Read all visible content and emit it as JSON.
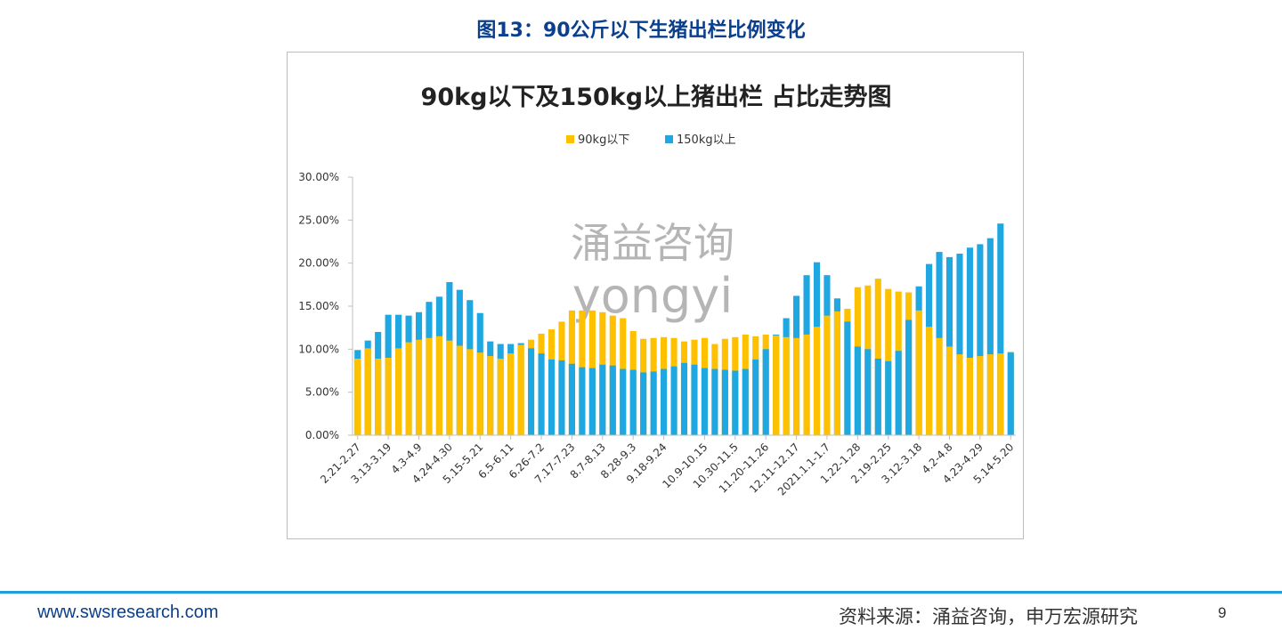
{
  "page": {
    "figure_title": "图13：90公斤以下生猪出栏比例变化",
    "footer_url": "www.swsresearch.com",
    "footer_source": "资料来源：涌益咨询，申万宏源研究",
    "page_number": "9"
  },
  "chart_data": {
    "type": "bar",
    "title": "90kg以下及150kg以上猪出栏 占比走势图",
    "watermark": [
      "涌益咨询",
      "yongyi"
    ],
    "legend_position": "top-center",
    "y_axis": {
      "min": 0,
      "max": 30,
      "unit": "%",
      "ticks": [
        "0.00%",
        "5.00%",
        "10.00%",
        "15.00%",
        "20.00%",
        "25.00%",
        "30.00%"
      ]
    },
    "x_tick_labels": [
      "2.21-2.27",
      "3.13-3.19",
      "4.3-4.9",
      "4.24-4.30",
      "5.15-5.21",
      "6.5-6.11",
      "6.26-7.2",
      "7.17-7.23",
      "8.7-8.13",
      "8.28-9.3",
      "9.18-9.24",
      "10.9-10.15",
      "10.30-11.5",
      "11.20-11.26",
      "12.11-12.17",
      "2021.1.1-1.7",
      "1.22-1.28",
      "2.19-2.25",
      "3.12-3.18",
      "4.2-4.8",
      "4.23-4.29",
      "5.14-5.20"
    ],
    "series": [
      {
        "name": "90kg以下",
        "color": "#ffc000",
        "values": [
          8.9,
          10.1,
          8.9,
          9.0,
          10.1,
          10.8,
          11.1,
          11.3,
          11.5,
          11.0,
          10.4,
          10.0,
          9.6,
          9.2,
          8.9,
          9.5,
          10.5,
          11.1,
          11.8,
          12.3,
          13.2,
          14.5,
          14.5,
          14.5,
          14.3,
          13.9,
          13.6,
          12.1,
          11.2,
          11.3,
          11.4,
          11.3,
          10.9,
          11.1,
          11.3,
          10.6,
          11.2,
          11.4,
          11.7,
          11.5,
          11.7,
          11.6,
          11.4,
          11.3,
          11.7,
          12.6,
          13.9,
          14.4,
          14.7,
          17.2,
          17.4,
          18.2,
          17.0,
          16.7,
          16.6,
          14.5,
          12.6,
          11.3,
          10.3,
          9.4,
          9.0,
          9.2,
          9.4,
          9.5,
          9.7
        ],
        "note": "90kg以下占比"
      },
      {
        "name": "150kg以上",
        "color": "#1ea7e1",
        "values": [
          9.9,
          11.0,
          12.0,
          14.0,
          14.0,
          13.9,
          14.3,
          15.5,
          16.1,
          17.8,
          16.9,
          15.7,
          14.2,
          10.9,
          10.6,
          10.6,
          10.7,
          10.1,
          9.5,
          8.8,
          8.7,
          8.3,
          7.9,
          7.8,
          8.2,
          8.1,
          7.7,
          7.6,
          7.3,
          7.4,
          7.7,
          8.0,
          8.4,
          8.2,
          7.8,
          7.7,
          7.6,
          7.5,
          7.7,
          8.8,
          10.0,
          11.7,
          13.6,
          16.2,
          18.6,
          20.1,
          18.6,
          15.9,
          13.2,
          10.3,
          10.0,
          8.9,
          8.6,
          9.8,
          13.4,
          17.3,
          19.9,
          21.3,
          20.7,
          21.1,
          21.8,
          22.2,
          22.9,
          24.6,
          9.6
        ]
      }
    ]
  }
}
